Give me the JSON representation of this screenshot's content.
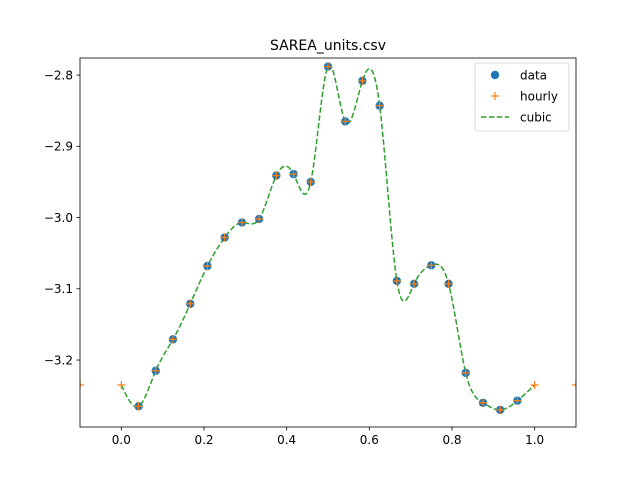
{
  "chart_data": {
    "type": "scatter",
    "title": "SAREA_units.csv",
    "xlabel": "",
    "ylabel": "",
    "xlim": [
      -0.1,
      1.1
    ],
    "ylim": [
      -3.294,
      -2.776
    ],
    "xticks": [
      0.0,
      0.2,
      0.4,
      0.6,
      0.8,
      1.0
    ],
    "xtick_labels": [
      "0.0",
      "0.2",
      "0.4",
      "0.6",
      "0.8",
      "1.0"
    ],
    "yticks": [
      -2.8,
      -2.9,
      -3.0,
      -3.1,
      -3.2
    ],
    "ytick_labels": [
      "−2.8",
      "−2.9",
      "−3.0",
      "−3.1",
      "−3.2"
    ],
    "grid": false,
    "legend_position": "top-right",
    "series": [
      {
        "name": "data",
        "style": "markers",
        "marker": "circle",
        "color": "#1f77b4",
        "x": [
          0.0417,
          0.0833,
          0.125,
          0.1667,
          0.2083,
          0.25,
          0.2917,
          0.3333,
          0.375,
          0.4167,
          0.4583,
          0.5,
          0.5417,
          0.5833,
          0.625,
          0.6667,
          0.7083,
          0.75,
          0.7917,
          0.8333,
          0.875,
          0.9167,
          0.9583
        ],
        "y": [
          -3.265,
          -3.215,
          -3.171,
          -3.121,
          -3.068,
          -3.028,
          -3.007,
          -3.002,
          -2.941,
          -2.939,
          -2.95,
          -2.788,
          -2.865,
          -2.808,
          -2.843,
          -3.089,
          -3.093,
          -3.067,
          -3.093,
          -3.218,
          -3.26,
          -3.27,
          -3.257
        ]
      },
      {
        "name": "hourly",
        "style": "markers",
        "marker": "plus",
        "color": "#ff7f0e",
        "x": [
          -0.1,
          0.0,
          0.0417,
          0.0833,
          0.125,
          0.1667,
          0.2083,
          0.25,
          0.2917,
          0.3333,
          0.375,
          0.4167,
          0.4583,
          0.5,
          0.5417,
          0.5833,
          0.625,
          0.6667,
          0.7083,
          0.75,
          0.7917,
          0.8333,
          0.875,
          0.9167,
          0.9583,
          1.0,
          1.1
        ],
        "y": [
          -3.235,
          -3.235,
          -3.265,
          -3.215,
          -3.171,
          -3.121,
          -3.068,
          -3.028,
          -3.007,
          -3.002,
          -2.941,
          -2.939,
          -2.95,
          -2.788,
          -2.865,
          -2.808,
          -2.843,
          -3.089,
          -3.093,
          -3.067,
          -3.093,
          -3.218,
          -3.26,
          -3.27,
          -3.257,
          -3.235,
          -3.235
        ]
      },
      {
        "name": "cubic",
        "style": "dashed-line",
        "color": "#2ca02c",
        "x": [
          0.0,
          0.0417,
          0.0833,
          0.125,
          0.1667,
          0.2083,
          0.25,
          0.2917,
          0.3333,
          0.375,
          0.4167,
          0.4583,
          0.5,
          0.5417,
          0.5833,
          0.625,
          0.6667,
          0.7083,
          0.75,
          0.7917,
          0.8333,
          0.875,
          0.9167,
          0.9583,
          1.0
        ],
        "y": [
          -3.235,
          -3.265,
          -3.215,
          -3.171,
          -3.121,
          -3.068,
          -3.028,
          -3.007,
          -3.002,
          -2.941,
          -2.939,
          -2.95,
          -2.788,
          -2.865,
          -2.808,
          -2.843,
          -3.089,
          -3.093,
          -3.067,
          -3.093,
          -3.218,
          -3.26,
          -3.27,
          -3.257,
          -3.235
        ]
      }
    ]
  }
}
